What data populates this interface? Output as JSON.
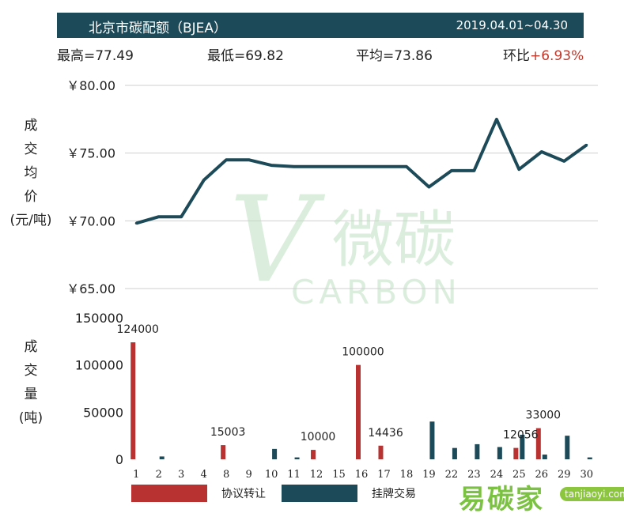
{
  "header": {
    "title": "北京市碳配额（BJEA）",
    "range": "2019.04.01~04.30"
  },
  "stats": {
    "high": "最高=77.49",
    "low": "最低=69.82",
    "avg": "平均=73.86",
    "mom_label": "环比",
    "mom_value": "+6.93%"
  },
  "price_ylabel_lines": [
    "成",
    "交",
    "均",
    "价",
    "(元/吨)"
  ],
  "volume_ylabel_lines": [
    "成",
    "交",
    "量",
    "(吨)"
  ],
  "legend": {
    "agreement": "协议转让",
    "listed": "挂牌交易"
  },
  "watermark": {
    "cn": "微碳",
    "en": "CARBON"
  },
  "brand": {
    "name": "易碳家",
    "url": "tanjiaoyi.com"
  },
  "colors": {
    "header": "#1d4a58",
    "line": "#1d4a58",
    "agreement": "#b83232",
    "listed": "#1d4a58",
    "watermark": "#dbeedd"
  },
  "chart_data": [
    {
      "type": "line",
      "x": [
        "1",
        "2",
        "3",
        "4",
        "8",
        "9",
        "10",
        "11",
        "12",
        "15",
        "16",
        "17",
        "18",
        "19",
        "22",
        "23",
        "24",
        "25",
        "26",
        "29",
        "30"
      ],
      "values": [
        69.82,
        70.3,
        70.3,
        73.0,
        74.5,
        74.5,
        74.1,
        74.0,
        74.0,
        74.0,
        74.0,
        74.0,
        74.0,
        72.5,
        73.7,
        73.7,
        77.49,
        73.8,
        75.1,
        74.4,
        75.6
      ],
      "ylim": [
        65,
        80
      ],
      "yticks": [
        "￥65.00",
        "￥70.00",
        "￥75.00",
        "￥80.00"
      ],
      "ytick_values": [
        65,
        70,
        75,
        80
      ],
      "grid": true
    },
    {
      "type": "bar",
      "categories": [
        "1",
        "2",
        "3",
        "4",
        "8",
        "9",
        "10",
        "11",
        "12",
        "15",
        "16",
        "17",
        "18",
        "19",
        "22",
        "23",
        "24",
        "25",
        "26",
        "29",
        "30"
      ],
      "ylim": [
        0,
        150000
      ],
      "yticks": [
        "0",
        "50000",
        "100000",
        "150000"
      ],
      "ytick_values": [
        0,
        50000,
        100000,
        150000
      ],
      "series": [
        {
          "name": "协议转让",
          "values": [
            124000,
            0,
            0,
            0,
            15003,
            0,
            0,
            0,
            10000,
            0,
            100000,
            14436,
            0,
            0,
            0,
            0,
            0,
            12056,
            33000,
            0,
            0
          ],
          "labels": [
            "124000",
            "",
            "",
            "",
            "15003",
            "",
            "",
            "",
            "10000",
            "",
            "100000",
            "14436",
            "",
            "",
            "",
            "",
            "",
            "12056",
            "33000",
            "",
            ""
          ]
        },
        {
          "name": "挂牌交易",
          "values": [
            0,
            3000,
            0,
            0,
            0,
            0,
            11000,
            2000,
            0,
            0,
            0,
            0,
            0,
            40000,
            12000,
            16000,
            13000,
            26000,
            5000,
            25000,
            2000
          ]
        }
      ]
    }
  ]
}
